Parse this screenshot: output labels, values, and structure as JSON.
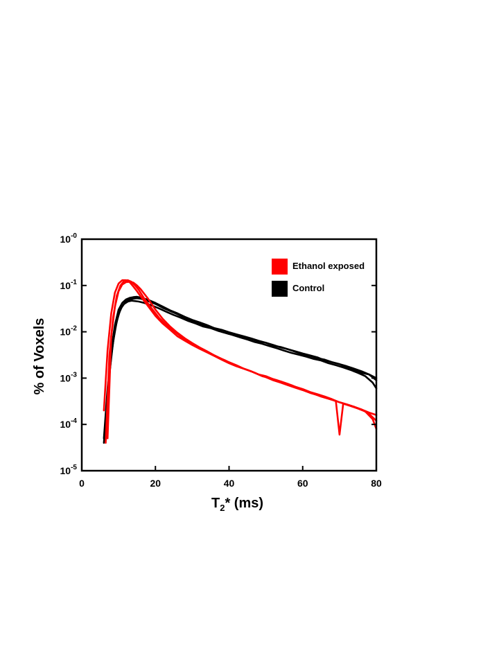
{
  "chart_data": {
    "type": "line",
    "xlabel": {
      "base": "T",
      "sub": "2",
      "rest": "* (ms)"
    },
    "ylabel": "% of Voxels",
    "xlim": [
      0,
      80
    ],
    "ylim": [
      1e-05,
      1
    ],
    "y_scale": "log",
    "x_ticks": [
      0,
      20,
      40,
      60,
      80
    ],
    "x_tick_labels": [
      "0",
      "20",
      "40",
      "60",
      "80"
    ],
    "y_ticks": [
      {
        "value": 1,
        "base": "10",
        "exp": "-0"
      },
      {
        "value": 0.1,
        "base": "10",
        "exp": "-1"
      },
      {
        "value": 0.01,
        "base": "10",
        "exp": "-2"
      },
      {
        "value": 0.001,
        "base": "10",
        "exp": "-3"
      },
      {
        "value": 0.0001,
        "base": "10",
        "exp": "-4"
      },
      {
        "value": 1e-05,
        "base": "10",
        "exp": "-5"
      }
    ],
    "grid": false,
    "legend": {
      "placement": "top-right",
      "items": [
        {
          "label": "Ethanol exposed",
          "color": "#ff0000"
        },
        {
          "label": "Control",
          "color": "#000000"
        }
      ]
    },
    "series": [
      {
        "group": "Control",
        "color": "#000000",
        "x": [
          6,
          7,
          8,
          9,
          10,
          11,
          12,
          13,
          14,
          15,
          16,
          18,
          20,
          22,
          24,
          26,
          28,
          30,
          32,
          34,
          36,
          38,
          40,
          42,
          44,
          46,
          48,
          50,
          52,
          54,
          56,
          58,
          60,
          62,
          64,
          66,
          68,
          70,
          72,
          74,
          76,
          78,
          80
        ],
        "y": [
          4e-05,
          0.0004,
          0.003,
          0.011,
          0.024,
          0.036,
          0.045,
          0.05,
          0.052,
          0.053,
          0.052,
          0.046,
          0.04,
          0.033,
          0.028,
          0.024,
          0.02,
          0.017,
          0.015,
          0.013,
          0.012,
          0.01,
          0.009,
          0.0085,
          0.0075,
          0.007,
          0.0062,
          0.0058,
          0.005,
          0.0047,
          0.0042,
          0.0038,
          0.0034,
          0.0031,
          0.0028,
          0.0024,
          0.0022,
          0.002,
          0.0017,
          0.0015,
          0.0013,
          0.0012,
          0.001
        ]
      },
      {
        "group": "Control",
        "color": "#000000",
        "x": [
          6,
          7,
          8,
          9,
          10,
          11,
          12,
          13,
          14,
          15,
          16,
          18,
          20,
          22,
          24,
          26,
          28,
          30,
          32,
          34,
          36,
          38,
          40,
          42,
          44,
          46,
          48,
          50,
          52,
          54,
          56,
          58,
          60,
          62,
          64,
          66,
          68,
          70,
          72,
          74,
          76,
          78,
          80
        ],
        "y": [
          5e-05,
          0.0006,
          0.004,
          0.014,
          0.03,
          0.042,
          0.05,
          0.054,
          0.056,
          0.057,
          0.055,
          0.049,
          0.042,
          0.035,
          0.029,
          0.025,
          0.021,
          0.018,
          0.016,
          0.014,
          0.012,
          0.011,
          0.0098,
          0.0088,
          0.008,
          0.0072,
          0.0064,
          0.0058,
          0.0052,
          0.0046,
          0.0042,
          0.0037,
          0.0033,
          0.003,
          0.0027,
          0.0025,
          0.0022,
          0.002,
          0.0018,
          0.0016,
          0.0014,
          0.0012,
          0.0009
        ]
      },
      {
        "group": "Control",
        "color": "#000000",
        "x": [
          6.5,
          7.5,
          8.5,
          9.5,
          10.5,
          11.5,
          12.5,
          13.5,
          14.5,
          15.5,
          17,
          19,
          21,
          23,
          25,
          27,
          29,
          31,
          33,
          35,
          37,
          39,
          41,
          43,
          45,
          47,
          49,
          51,
          53,
          55,
          57,
          59,
          61,
          63,
          65,
          67,
          69,
          71,
          73,
          75,
          77,
          79,
          80
        ],
        "y": [
          0.0001,
          0.0012,
          0.006,
          0.017,
          0.031,
          0.04,
          0.045,
          0.047,
          0.046,
          0.045,
          0.042,
          0.037,
          0.032,
          0.027,
          0.023,
          0.02,
          0.017,
          0.015,
          0.013,
          0.012,
          0.0105,
          0.0095,
          0.0085,
          0.0076,
          0.0068,
          0.006,
          0.0055,
          0.0049,
          0.0044,
          0.0039,
          0.0035,
          0.0032,
          0.0029,
          0.0026,
          0.0024,
          0.0021,
          0.0019,
          0.0017,
          0.0015,
          0.0013,
          0.0011,
          0.0008,
          0.0006
        ]
      },
      {
        "group": "Ethanol exposed",
        "color": "#ff0000",
        "x": [
          6,
          7,
          8,
          9,
          10,
          11,
          12,
          13,
          14,
          15,
          16,
          18,
          20,
          22,
          24,
          26,
          28,
          30,
          32,
          34,
          36,
          38,
          40,
          42,
          44,
          46,
          48,
          50,
          52,
          54,
          56,
          58,
          60,
          62,
          64,
          66,
          68,
          70,
          72,
          74,
          76,
          78,
          80
        ],
        "y": [
          0.0002,
          0.004,
          0.025,
          0.07,
          0.11,
          0.13,
          0.13,
          0.118,
          0.095,
          0.075,
          0.058,
          0.036,
          0.022,
          0.015,
          0.011,
          0.008,
          0.0064,
          0.0052,
          0.0043,
          0.0036,
          0.003,
          0.0025,
          0.0021,
          0.0018,
          0.0016,
          0.0014,
          0.0012,
          0.0011,
          0.00095,
          0.00085,
          0.00075,
          0.00065,
          0.00058,
          0.0005,
          0.00045,
          0.0004,
          0.00035,
          0.0003,
          0.00027,
          0.00024,
          0.00021,
          0.00018,
          0.00016
        ]
      },
      {
        "group": "Ethanol exposed",
        "color": "#ff0000",
        "x": [
          6.5,
          7.5,
          8.5,
          9.5,
          10.5,
          11.5,
          12.5,
          13.5,
          14.5,
          15.5,
          17,
          19,
          21,
          23,
          25,
          27,
          29,
          31,
          33,
          35,
          37,
          39,
          41,
          43,
          45,
          47,
          49,
          51,
          53,
          55,
          57,
          59,
          61,
          63,
          65,
          67,
          69,
          70,
          71,
          73,
          75,
          77,
          79,
          80
        ],
        "y": [
          4e-05,
          0.003,
          0.02,
          0.06,
          0.1,
          0.125,
          0.13,
          0.12,
          0.1,
          0.08,
          0.052,
          0.032,
          0.02,
          0.014,
          0.0105,
          0.0078,
          0.0062,
          0.005,
          0.0041,
          0.0034,
          0.0028,
          0.0024,
          0.002,
          0.0017,
          0.0015,
          0.0013,
          0.0011,
          0.001,
          0.0009,
          0.00078,
          0.0007,
          0.0006,
          0.00052,
          0.00046,
          0.0004,
          0.00036,
          0.00032,
          6e-05,
          0.00028,
          0.00025,
          0.00022,
          0.00019,
          0.00013,
          8e-05
        ]
      },
      {
        "group": "Ethanol exposed",
        "color": "#ff0000",
        "x": [
          7,
          8,
          9,
          10,
          11,
          12,
          13,
          14,
          15,
          16,
          18,
          20,
          22,
          24,
          26,
          28,
          30,
          32,
          34,
          36,
          38,
          40,
          42,
          44,
          46,
          48,
          50,
          52,
          54,
          56,
          58,
          60,
          62,
          64,
          66,
          68,
          70,
          72,
          74,
          76,
          78,
          80
        ],
        "y": [
          5e-05,
          0.008,
          0.035,
          0.075,
          0.105,
          0.118,
          0.12,
          0.115,
          0.1,
          0.083,
          0.052,
          0.03,
          0.019,
          0.013,
          0.0095,
          0.0072,
          0.0057,
          0.0046,
          0.0038,
          0.0031,
          0.0026,
          0.0022,
          0.0019,
          0.0016,
          0.0014,
          0.0012,
          0.00105,
          0.0009,
          0.0008,
          0.0007,
          0.00062,
          0.00055,
          0.00048,
          0.00043,
          0.00038,
          0.00034,
          0.0003,
          0.00027,
          0.00024,
          0.00021,
          0.00017,
          0.00012
        ]
      }
    ]
  }
}
